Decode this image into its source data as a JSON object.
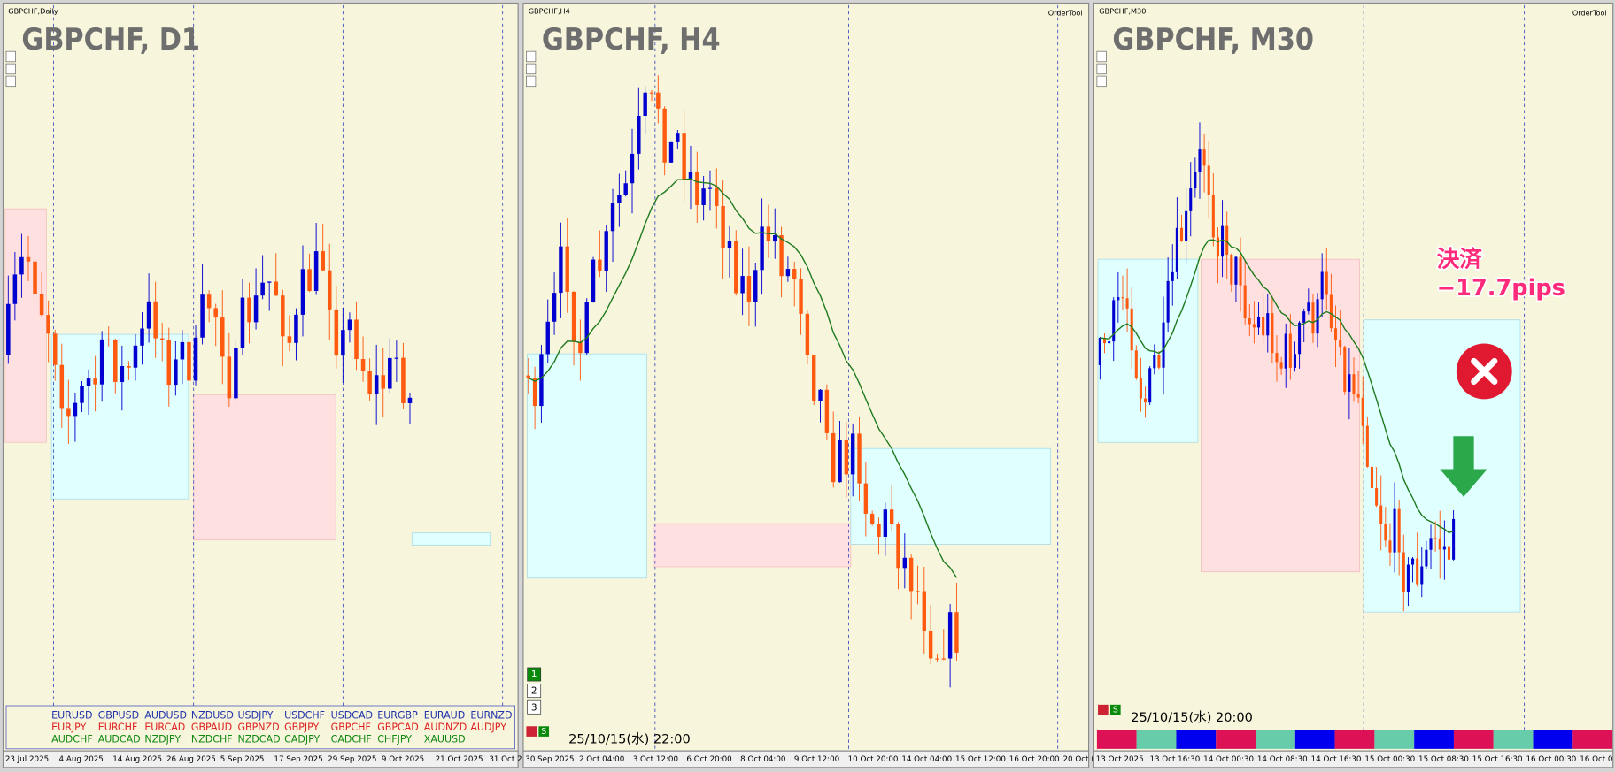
{
  "panels": [
    {
      "header": "GBPCHF,Daily",
      "title": "GBPCHF, D1",
      "x_labels": [
        "23 Jul 2025",
        "4 Aug 2025",
        "14 Aug 2025",
        "26 Aug 2025",
        "5 Sep 2025",
        "17 Sep 2025",
        "29 Sep 2025",
        "9 Oct 2025",
        "21 Oct 2025",
        "31 Oct 2"
      ]
    },
    {
      "header": "GBPCHF,H4",
      "title": "GBPCHF, H4",
      "tool": "OrderTool",
      "timestamp": "25/10/15(水) 22:00",
      "buttons": [
        "1",
        "2",
        "3"
      ],
      "toggle": "S",
      "x_labels": [
        "30 Sep 2025",
        "2 Oct 04:00",
        "3 Oct 12:00",
        "6 Oct 20:00",
        "8 Oct 04:00",
        "9 Oct 12:00",
        "10 Oct 20:00",
        "14 Oct 04:00",
        "15 Oct 12:00",
        "16 Oct 20:00",
        "20 Oct ("
      ]
    },
    {
      "header": "GBPCHF,M30",
      "title": "GBPCHF, M30",
      "tool": "OrderTool",
      "timestamp": "25/10/15(水) 20:00",
      "toggle": "S",
      "annotation": [
        "決済",
        "−17.7pips"
      ],
      "x_labels": [
        "13 Oct 2025",
        "13 Oct 16:30",
        "14 Oct 00:30",
        "14 Oct 08:30",
        "14 Oct 16:30",
        "15 Oct 00:30",
        "15 Oct 08:30",
        "15 Oct 16:30",
        "16 Oct 00:30",
        "16 Oct 0"
      ]
    }
  ],
  "symbols": [
    [
      "EURUSD",
      "GBPUSD",
      "AUDUSD",
      "NZDUSD",
      "USDJPY",
      "USDCHF",
      "USDCAD",
      "EURGBP",
      "EURAUD",
      "EURNZD"
    ],
    [
      "EURJPY",
      "EURCHF",
      "EURCAD",
      "GBPAUD",
      "GBPNZD",
      "GBPJPY",
      "GBPCHF",
      "GBPCAD",
      "AUDNZD",
      "AUDJPY"
    ],
    [
      "AUDCHF",
      "AUDCAD",
      "NZDJPY",
      "NZDCHF",
      "NZDCAD",
      "CADJPY",
      "CADCHF",
      "CHFJPY",
      "XAUUSD"
    ]
  ]
}
